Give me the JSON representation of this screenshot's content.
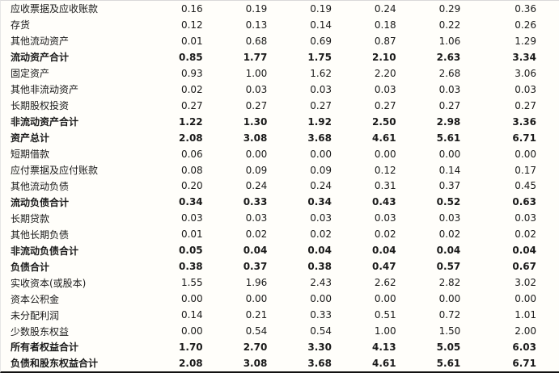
{
  "page": {
    "background": "#fffefa",
    "bottom_rule_color": "#111111"
  },
  "table": {
    "rows": [
      {
        "label": "应收票据及应收账款",
        "bold": false,
        "values": [
          "0.16",
          "0.19",
          "0.19",
          "0.24",
          "0.29",
          "0.36"
        ]
      },
      {
        "label": "存货",
        "bold": false,
        "values": [
          "0.12",
          "0.13",
          "0.14",
          "0.18",
          "0.22",
          "0.26"
        ]
      },
      {
        "label": "其他流动资产",
        "bold": false,
        "values": [
          "0.01",
          "0.68",
          "0.69",
          "0.87",
          "1.06",
          "1.29"
        ]
      },
      {
        "label": "流动资产合计",
        "bold": true,
        "values": [
          "0.85",
          "1.77",
          "1.75",
          "2.10",
          "2.63",
          "3.34"
        ]
      },
      {
        "label": "固定资产",
        "bold": false,
        "values": [
          "0.93",
          "1.00",
          "1.62",
          "2.20",
          "2.68",
          "3.06"
        ]
      },
      {
        "label": "其他非流动资产",
        "bold": false,
        "values": [
          "0.02",
          "0.03",
          "0.03",
          "0.03",
          "0.03",
          "0.03"
        ]
      },
      {
        "label": "长期股权投资",
        "bold": false,
        "values": [
          "0.27",
          "0.27",
          "0.27",
          "0.27",
          "0.27",
          "0.27"
        ]
      },
      {
        "label": "非流动资产合计",
        "bold": true,
        "values": [
          "1.22",
          "1.30",
          "1.92",
          "2.50",
          "2.98",
          "3.36"
        ]
      },
      {
        "label": "资产总计",
        "bold": true,
        "values": [
          "2.08",
          "3.08",
          "3.68",
          "4.61",
          "5.61",
          "6.71"
        ]
      },
      {
        "label": "短期借款",
        "bold": false,
        "values": [
          "0.06",
          "0.00",
          "0.00",
          "0.00",
          "0.00",
          "0.00"
        ]
      },
      {
        "label": "应付票据及应付账款",
        "bold": false,
        "values": [
          "0.08",
          "0.09",
          "0.09",
          "0.12",
          "0.14",
          "0.17"
        ]
      },
      {
        "label": "其他流动负债",
        "bold": false,
        "values": [
          "0.20",
          "0.24",
          "0.24",
          "0.31",
          "0.37",
          "0.45"
        ]
      },
      {
        "label": "流动负债合计",
        "bold": true,
        "values": [
          "0.34",
          "0.33",
          "0.34",
          "0.43",
          "0.52",
          "0.63"
        ]
      },
      {
        "label": "长期贷款",
        "bold": false,
        "values": [
          "0.03",
          "0.03",
          "0.03",
          "0.03",
          "0.03",
          "0.03"
        ]
      },
      {
        "label": "其他长期负债",
        "bold": false,
        "values": [
          "0.01",
          "0.02",
          "0.02",
          "0.02",
          "0.02",
          "0.02"
        ]
      },
      {
        "label": "非流动负债合计",
        "bold": true,
        "values": [
          "0.05",
          "0.04",
          "0.04",
          "0.04",
          "0.04",
          "0.04"
        ]
      },
      {
        "label": "负债合计",
        "bold": true,
        "values": [
          "0.38",
          "0.37",
          "0.38",
          "0.47",
          "0.57",
          "0.67"
        ]
      },
      {
        "label": "实收资本(或股本)",
        "bold": false,
        "values": [
          "1.55",
          "1.96",
          "2.43",
          "2.62",
          "2.82",
          "3.02"
        ]
      },
      {
        "label": "资本公积金",
        "bold": false,
        "values": [
          "0.00",
          "0.00",
          "0.00",
          "0.00",
          "0.00",
          "0.00"
        ]
      },
      {
        "label": "未分配利润",
        "bold": false,
        "values": [
          "0.14",
          "0.21",
          "0.33",
          "0.51",
          "0.72",
          "1.01"
        ]
      },
      {
        "label": "少数股东权益",
        "bold": false,
        "values": [
          "0.00",
          "0.54",
          "0.54",
          "1.00",
          "1.50",
          "2.00"
        ]
      },
      {
        "label": "所有者权益合计",
        "bold": true,
        "values": [
          "1.70",
          "2.70",
          "3.30",
          "4.13",
          "5.05",
          "6.03"
        ]
      },
      {
        "label": "负债和股东权益合计",
        "bold": true,
        "values": [
          "2.08",
          "3.08",
          "3.68",
          "4.61",
          "5.61",
          "6.71"
        ]
      }
    ]
  }
}
